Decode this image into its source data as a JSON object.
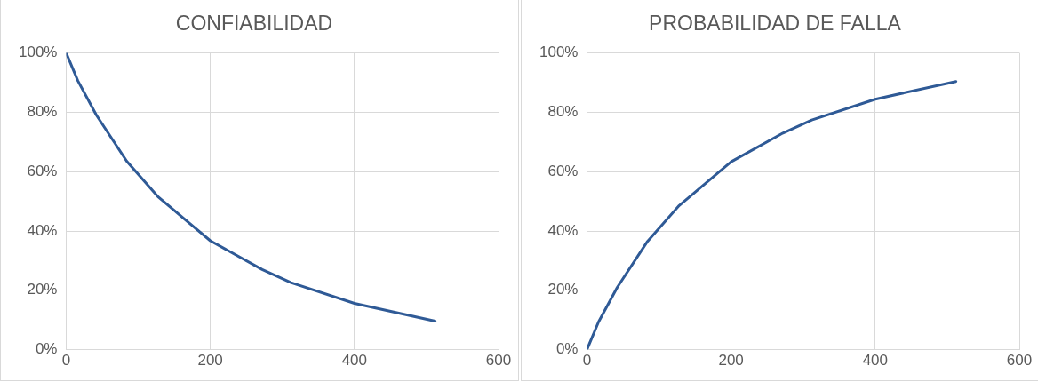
{
  "chart_data": [
    {
      "type": "line",
      "title": "CONFIABILIDAD",
      "x": [
        0,
        16,
        42,
        84,
        128,
        200,
        272,
        312,
        400,
        512
      ],
      "series": [
        {
          "color": "#2f5a96",
          "values": [
            100,
            90.7,
            79,
            63.5,
            51.4,
            36.7,
            27,
            22.6,
            15.6,
            9.6
          ]
        }
      ],
      "xlim": [
        0,
        600
      ],
      "xticks": [
        0,
        200,
        400,
        600
      ],
      "ylim": [
        0,
        100
      ],
      "yticks": [
        {
          "value": 0,
          "label": "0%"
        },
        {
          "value": 20,
          "label": "20%"
        },
        {
          "value": 40,
          "label": "40%"
        },
        {
          "value": 60,
          "label": "60%"
        },
        {
          "value": 80,
          "label": "80%"
        },
        {
          "value": 100,
          "label": "100%"
        }
      ],
      "grid": true,
      "legend": false,
      "marker": "none",
      "line_style": "solid"
    },
    {
      "type": "line",
      "title": "PROBABILIDAD DE FALLA",
      "x": [
        0,
        16,
        42,
        84,
        128,
        200,
        272,
        312,
        400,
        512
      ],
      "series": [
        {
          "color": "#2f5a96",
          "values": [
            0,
            9.3,
            21,
            36.5,
            48.6,
            63.3,
            73,
            77.4,
            84.4,
            90.4
          ]
        }
      ],
      "xlim": [
        0,
        600
      ],
      "xticks": [
        0,
        200,
        400,
        600
      ],
      "ylim": [
        0,
        100
      ],
      "yticks": [
        {
          "value": 0,
          "label": "0%"
        },
        {
          "value": 20,
          "label": "20%"
        },
        {
          "value": 40,
          "label": "40%"
        },
        {
          "value": 60,
          "label": "60%"
        },
        {
          "value": 80,
          "label": "80%"
        },
        {
          "value": 100,
          "label": "100%"
        }
      ],
      "grid": true,
      "legend": false,
      "marker": "none",
      "line_style": "solid"
    }
  ]
}
